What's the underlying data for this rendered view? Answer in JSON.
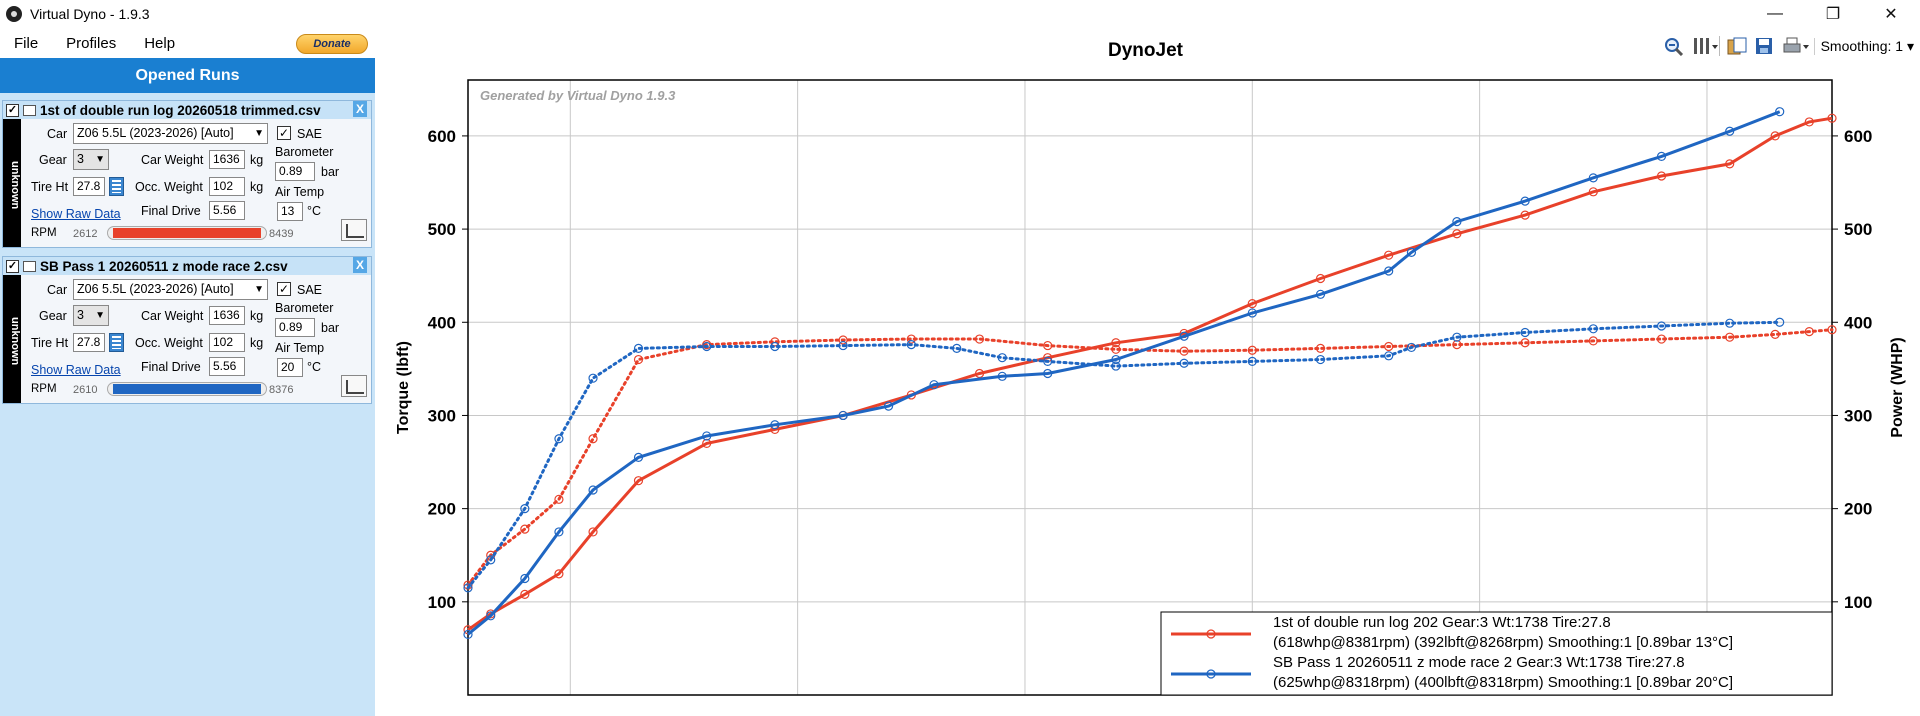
{
  "window": {
    "title": "Virtual Dyno - 1.9.3",
    "minimize": "—",
    "maximize": "❐",
    "close": "✕"
  },
  "menu": {
    "file": "File",
    "profiles": "Profiles",
    "help": "Help",
    "donate": "Donate"
  },
  "panel": {
    "header": "Opened Runs"
  },
  "runs": [
    {
      "title": "1st of double run log 20260518 trimmed.csv",
      "side_label": "unknown",
      "car_label": "Car",
      "car": "Z06 5.5L (2023-2026) [Auto]",
      "sae_label": "SAE",
      "sae_checked": "✓",
      "gear_label": "Gear",
      "gear": "3",
      "car_weight_label": "Car Weight",
      "car_weight": "1636",
      "weight_unit": "kg",
      "barometer_label": "Barometer",
      "barometer": "0.89",
      "bar_unit": "bar",
      "tire_label": "Tire Ht",
      "tire": "27.8",
      "occ_weight_label": "Occ. Weight",
      "occ_weight": "102",
      "occ_unit": "kg",
      "air_temp_label": "Air Temp",
      "air_temp": "13",
      "temp_unit": "°C",
      "final_drive_label": "Final Drive",
      "final_drive": "5.56",
      "raw_data": "Show Raw Data",
      "rpm_label": "RPM",
      "rpm_min": "2612",
      "rpm_max": "8439",
      "color": "#e8412a"
    },
    {
      "title": "SB Pass 1 20260511 z mode race 2.csv",
      "side_label": "unknown",
      "car_label": "Car",
      "car": "Z06 5.5L (2023-2026) [Auto]",
      "sae_label": "SAE",
      "sae_checked": "✓",
      "gear_label": "Gear",
      "gear": "3",
      "car_weight_label": "Car Weight",
      "car_weight": "1636",
      "weight_unit": "kg",
      "barometer_label": "Barometer",
      "barometer": "0.89",
      "bar_unit": "bar",
      "tire_label": "Tire Ht",
      "tire": "27.8",
      "occ_weight_label": "Occ. Weight",
      "occ_weight": "102",
      "occ_unit": "kg",
      "air_temp_label": "Air Temp",
      "air_temp": "20",
      "temp_unit": "°C",
      "final_drive_label": "Final Drive",
      "final_drive": "5.56",
      "raw_data": "Show Raw Data",
      "rpm_label": "RPM",
      "rpm_min": "2610",
      "rpm_max": "8376",
      "color": "#1f66c2"
    }
  ],
  "toolbar": {
    "smoothing": "Smoothing: 1"
  },
  "chart_data": {
    "type": "line",
    "title": "DynoJet",
    "watermark": "Generated by Virtual Dyno 1.9.3",
    "ylabel_left": "Torque (lbft)",
    "ylabel_right": "Power (WHP)",
    "ylim": [
      0,
      660
    ],
    "xlim": [
      2550,
      8550
    ],
    "yticks": [
      100,
      200,
      300,
      400,
      500,
      600
    ],
    "grid": true,
    "legend_position": "bottom-right",
    "series": [
      {
        "name": "1st of double run log 202 Gear:3 Wt:1738 Tire:27.8",
        "stats": "(618whp@8381rpm) (392lbft@8268rpm) Smoothing:1 [0.89bar 13°C]",
        "color": "#e8412a",
        "kind": "power",
        "x": [
          2550,
          2650,
          2800,
          2950,
          3100,
          3300,
          3600,
          3900,
          4200,
          4500,
          4800,
          5100,
          5400,
          5700,
          6000,
          6300,
          6600,
          6900,
          7200,
          7500,
          7800,
          8100,
          8300,
          8450,
          8550
        ],
        "values": [
          70,
          87,
          108,
          130,
          175,
          230,
          270,
          285,
          300,
          322,
          345,
          362,
          378,
          388,
          420,
          447,
          472,
          495,
          515,
          540,
          557,
          570,
          600,
          615,
          619
        ]
      },
      {
        "name": "1st of double run log 202 Gear:3 Wt:1738 Tire:27.8",
        "color": "#e8412a",
        "kind": "torque",
        "x": [
          2550,
          2650,
          2800,
          2950,
          3100,
          3300,
          3600,
          3900,
          4200,
          4500,
          4800,
          5100,
          5400,
          5700,
          6000,
          6300,
          6600,
          6900,
          7200,
          7500,
          7800,
          8100,
          8300,
          8450,
          8550
        ],
        "values": [
          118,
          150,
          178,
          210,
          275,
          360,
          376,
          379,
          381,
          382,
          382,
          375,
          371,
          369,
          370,
          372,
          374,
          376,
          378,
          380,
          382,
          384,
          387,
          390,
          392
        ]
      },
      {
        "name": "SB Pass 1 20260511 z mode race 2 Gear:3 Wt:1738 Tire:27.8",
        "stats": "(625whp@8318rpm) (400lbft@8318rpm) Smoothing:1 [0.89bar 20°C]",
        "color": "#1f66c2",
        "kind": "power",
        "x": [
          2550,
          2650,
          2800,
          2950,
          3100,
          3300,
          3600,
          3900,
          4200,
          4400,
          4600,
          4900,
          5100,
          5400,
          5700,
          6000,
          6300,
          6600,
          6700,
          6900,
          7200,
          7500,
          7800,
          8100,
          8320
        ],
        "values": [
          65,
          85,
          125,
          175,
          220,
          255,
          278,
          290,
          300,
          310,
          333,
          342,
          345,
          360,
          385,
          410,
          430,
          455,
          475,
          508,
          530,
          555,
          578,
          605,
          626
        ]
      },
      {
        "name": "SB Pass 1 20260511 z mode race 2 Gear:3 Wt:1738 Tire:27.8",
        "color": "#1f66c2",
        "kind": "torque",
        "x": [
          2550,
          2650,
          2800,
          2950,
          3100,
          3300,
          3600,
          3900,
          4200,
          4500,
          4700,
          4900,
          5100,
          5400,
          5700,
          6000,
          6300,
          6600,
          6700,
          6900,
          7200,
          7500,
          7800,
          8100,
          8320
        ],
        "values": [
          115,
          145,
          200,
          275,
          340,
          372,
          374,
          374,
          375,
          376,
          372,
          362,
          358,
          353,
          356,
          358,
          360,
          364,
          373,
          384,
          389,
          393,
          396,
          399,
          400
        ]
      }
    ]
  }
}
